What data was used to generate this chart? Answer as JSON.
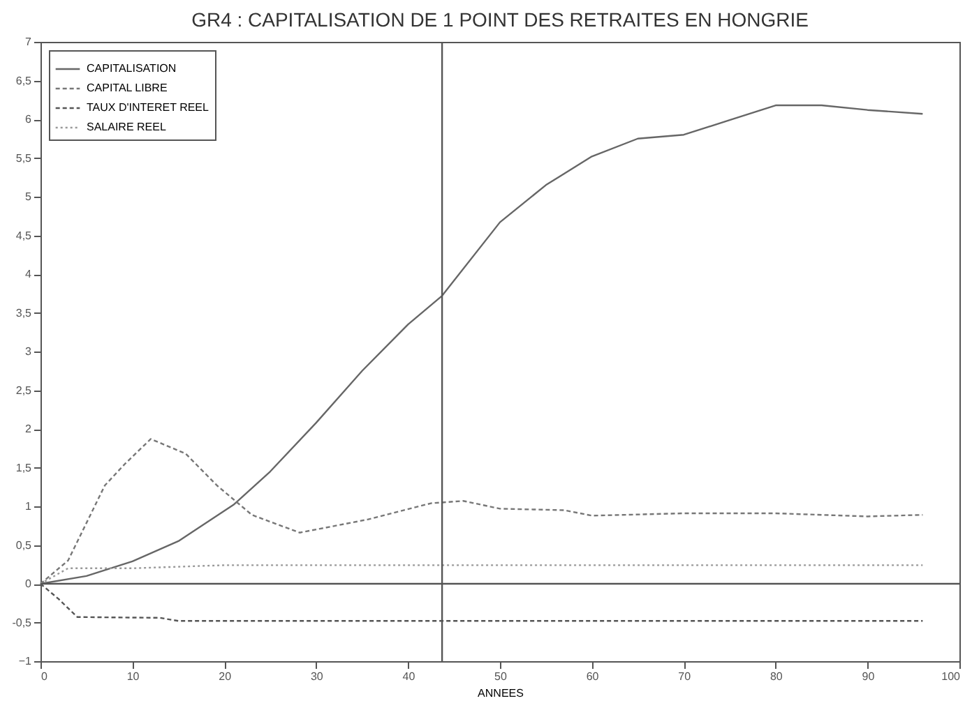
{
  "chart_data": {
    "type": "line",
    "title": "GR4 : CAPITALISATION DE 1 POINT DES RETRAITES EN HONGRIE",
    "xlabel": "ANNEES",
    "xlim": [
      0,
      100
    ],
    "xticks": [
      0,
      10,
      20,
      30,
      40,
      50,
      60,
      70,
      80,
      90,
      100
    ],
    "ylim": [
      -1,
      7
    ],
    "yticks": [
      -1,
      {
        "value": -0.5,
        "label": "-0,5"
      },
      0,
      {
        "value": 0.5,
        "label": "0,5"
      },
      1,
      {
        "value": 1.5,
        "label": "1,5"
      },
      2,
      {
        "value": 2.5,
        "label": "2,5"
      },
      3,
      {
        "value": 3.5,
        "label": "3,5"
      },
      4,
      {
        "value": 4.5,
        "label": "4,5"
      },
      5,
      {
        "value": 5.5,
        "label": "5,5"
      },
      6,
      {
        "value": 6.5,
        "label": "6,5"
      },
      7
    ],
    "grid": false,
    "legend": "top left",
    "ref_lines": [
      {
        "axis": "x",
        "value": 43.7,
        "color": "#555555"
      },
      {
        "axis": "y",
        "value": 0,
        "color": "#555555"
      }
    ],
    "series": [
      {
        "name": "CAPITALISATION",
        "color": "#666666",
        "line_style": "solid",
        "x": [
          0,
          5,
          10,
          15,
          21,
          25,
          30,
          35,
          40,
          43.7,
          50,
          55,
          60,
          65,
          70,
          75,
          80,
          85,
          90,
          96
        ],
        "values": [
          0,
          0.1,
          0.29,
          0.55,
          1.02,
          1.45,
          2.08,
          2.75,
          3.35,
          3.72,
          4.67,
          5.15,
          5.52,
          5.75,
          5.8,
          5.99,
          6.18,
          6.18,
          6.12,
          6.07
        ]
      },
      {
        "name": "CAPITAL LIBRE",
        "color": "#777777",
        "line_style": "dashed",
        "x": [
          0,
          3,
          7,
          9.2,
          12,
          15.8,
          19.2,
          23,
          28.2,
          35.6,
          42.5,
          46,
          50,
          57,
          60,
          70,
          80,
          90,
          96
        ],
        "values": [
          0,
          0.3,
          1.27,
          1.55,
          1.87,
          1.68,
          1.27,
          0.89,
          0.66,
          0.83,
          1.04,
          1.07,
          0.97,
          0.95,
          0.88,
          0.91,
          0.91,
          0.87,
          0.89
        ]
      },
      {
        "name": "TAUX D'INTERET REEL",
        "color": "#555555",
        "line_style": "dashed",
        "x": [
          0,
          2,
          4,
          13,
          15,
          96
        ],
        "values": [
          0,
          -0.2,
          -0.43,
          -0.44,
          -0.48,
          -0.48
        ]
      },
      {
        "name": "SALAIRE REEL",
        "color": "#999999",
        "line_style": "dotted",
        "x": [
          0,
          3,
          10,
          20,
          96
        ],
        "values": [
          0,
          0.2,
          0.2,
          0.24,
          0.24
        ]
      }
    ]
  }
}
